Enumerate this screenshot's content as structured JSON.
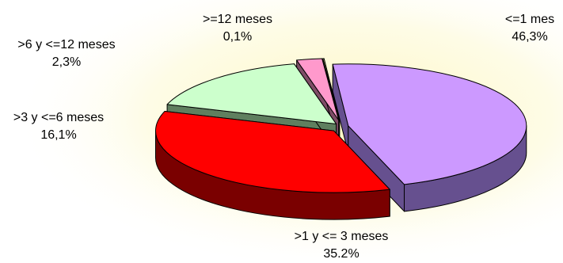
{
  "chart_data": {
    "type": "pie",
    "style": "3d-exploded",
    "slices": [
      {
        "label": "<=1 mes",
        "value": 46.3,
        "value_label": "46,3%",
        "color": "#cc99ff",
        "side_color": "#66508f"
      },
      {
        "label": ">1 y <= 3 meses",
        "value": 35.2,
        "value_label": "35.2%",
        "color": "#ff0000",
        "side_color": "#7a0000"
      },
      {
        "label": ">3 y <=6 meses",
        "value": 16.1,
        "value_label": "16,1%",
        "color": "#ccffcc",
        "side_color": "#5f7f5f"
      },
      {
        "label": ">6 y <=12 meses",
        "value": 2.3,
        "value_label": "2,3%",
        "color": "#ff99cc",
        "side_color": "#7f4c66"
      },
      {
        "label": ">=12 meses",
        "value": 0.1,
        "value_label": "0,1%",
        "color": "#ffff99",
        "side_color": "#7f7f4c"
      }
    ],
    "background_glow": "#fdf7c0"
  }
}
